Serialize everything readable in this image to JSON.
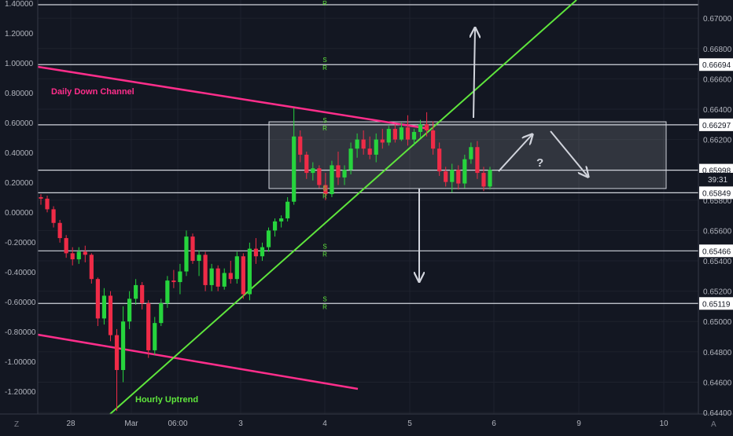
{
  "chart_data": {
    "type": "candlestick",
    "title": "",
    "left_axis": {
      "ticks": [
        "1.40000",
        "1.20000",
        "1.00000",
        "0.80000",
        "0.60000",
        "0.40000",
        "0.20000",
        "0.00000",
        "-0.20000",
        "-0.40000",
        "-0.60000",
        "-0.80000",
        "-1.00000",
        "-1.20000"
      ],
      "range": [
        -1.3,
        1.4
      ]
    },
    "right_axis": {
      "ticks": [
        "0.67000",
        "0.66800",
        "0.66600",
        "0.66400",
        "0.66200",
        "0.66000",
        "0.65800",
        "0.65600",
        "0.65400",
        "0.65200",
        "0.65000",
        "0.64800",
        "0.64600",
        "0.64400"
      ],
      "range": [
        0.6439,
        0.6712
      ]
    },
    "x_axis": {
      "labels": [
        "28",
        "Mar",
        "06:00",
        "3",
        "4",
        "5",
        "6",
        "9",
        "10"
      ]
    },
    "price_lines": [
      {
        "value": 0.66694,
        "label": "0.66694"
      },
      {
        "value": 0.66297,
        "label": "0.66297"
      },
      {
        "value": 0.65998,
        "label": "0.65998"
      },
      {
        "value": 0.65849,
        "label": "0.65849"
      },
      {
        "value": 0.65466,
        "label": "0.65466"
      },
      {
        "value": 0.65119,
        "label": "0.65119"
      }
    ],
    "sr_tags": [
      {
        "value": 0.6712,
        "text": "S R"
      },
      {
        "value": 0.66694,
        "text": "S R"
      },
      {
        "value": 0.66297,
        "text": "S R"
      },
      {
        "value": 0.65849,
        "text": "S R"
      },
      {
        "value": 0.65466,
        "text": "S R"
      },
      {
        "value": 0.65119,
        "text": "S R"
      }
    ],
    "countdown": "39:31",
    "annotations": {
      "daily_channel": "Daily Down Channel",
      "hourly_uptrend": "Hourly Uptrend",
      "question": "?"
    },
    "candles": [
      [
        0.6582,
        0.6584,
        0.6577,
        0.6581
      ],
      [
        0.6581,
        0.6583,
        0.6572,
        0.6574
      ],
      [
        0.6574,
        0.6576,
        0.6562,
        0.6565
      ],
      [
        0.6565,
        0.6567,
        0.6552,
        0.6555
      ],
      [
        0.6555,
        0.6557,
        0.6542,
        0.6545
      ],
      [
        0.6545,
        0.6549,
        0.6537,
        0.6541
      ],
      [
        0.6541,
        0.6549,
        0.6538,
        0.6546
      ],
      [
        0.6546,
        0.655,
        0.6539,
        0.6544
      ],
      [
        0.6544,
        0.6545,
        0.6525,
        0.6528
      ],
      [
        0.6528,
        0.6529,
        0.6497,
        0.6502
      ],
      [
        0.6502,
        0.6522,
        0.6498,
        0.6517
      ],
      [
        0.6517,
        0.652,
        0.6487,
        0.6491
      ],
      [
        0.6491,
        0.6495,
        0.6441,
        0.6468
      ],
      [
        0.6468,
        0.651,
        0.646,
        0.65
      ],
      [
        0.65,
        0.652,
        0.6495,
        0.6515
      ],
      [
        0.6515,
        0.6528,
        0.6511,
        0.6524
      ],
      [
        0.6524,
        0.6526,
        0.6508,
        0.6512
      ],
      [
        0.6512,
        0.6514,
        0.6476,
        0.6481
      ],
      [
        0.6481,
        0.6503,
        0.6478,
        0.6499
      ],
      [
        0.6499,
        0.6515,
        0.6497,
        0.6512
      ],
      [
        0.6512,
        0.653,
        0.6509,
        0.6527
      ],
      [
        0.6527,
        0.6534,
        0.6522,
        0.6526
      ],
      [
        0.6526,
        0.6538,
        0.6518,
        0.6533
      ],
      [
        0.6533,
        0.656,
        0.653,
        0.6556
      ],
      [
        0.6556,
        0.6558,
        0.6538,
        0.654
      ],
      [
        0.654,
        0.6547,
        0.653,
        0.6544
      ],
      [
        0.6544,
        0.6546,
        0.652,
        0.6524
      ],
      [
        0.6524,
        0.6538,
        0.652,
        0.6535
      ],
      [
        0.6535,
        0.6537,
        0.652,
        0.6523
      ],
      [
        0.6523,
        0.6535,
        0.6521,
        0.6532
      ],
      [
        0.6532,
        0.654,
        0.6525,
        0.6528
      ],
      [
        0.6528,
        0.6546,
        0.6525,
        0.6543
      ],
      [
        0.6543,
        0.6545,
        0.6515,
        0.6518
      ],
      [
        0.6518,
        0.6552,
        0.6514,
        0.6548
      ],
      [
        0.6548,
        0.6555,
        0.6538,
        0.6543
      ],
      [
        0.6543,
        0.6552,
        0.654,
        0.6549
      ],
      [
        0.6549,
        0.6562,
        0.6546,
        0.656
      ],
      [
        0.656,
        0.6568,
        0.6556,
        0.6566
      ],
      [
        0.6566,
        0.657,
        0.6562,
        0.6568
      ],
      [
        0.6568,
        0.6582,
        0.6566,
        0.6579
      ],
      [
        0.6579,
        0.6641,
        0.6577,
        0.6622
      ],
      [
        0.6622,
        0.6626,
        0.6605,
        0.661
      ],
      [
        0.661,
        0.6612,
        0.6594,
        0.6598
      ],
      [
        0.6598,
        0.6605,
        0.6593,
        0.6601
      ],
      [
        0.6601,
        0.6603,
        0.6588,
        0.659
      ],
      [
        0.659,
        0.6598,
        0.658,
        0.6584
      ],
      [
        0.6584,
        0.6606,
        0.6582,
        0.6603
      ],
      [
        0.6603,
        0.6612,
        0.659,
        0.6595
      ],
      [
        0.6595,
        0.6603,
        0.659,
        0.66
      ],
      [
        0.66,
        0.6618,
        0.6597,
        0.6614
      ],
      [
        0.6614,
        0.6624,
        0.6608,
        0.662
      ],
      [
        0.662,
        0.6626,
        0.661,
        0.6614
      ],
      [
        0.6614,
        0.6622,
        0.6607,
        0.661
      ],
      [
        0.661,
        0.6624,
        0.6605,
        0.662
      ],
      [
        0.662,
        0.6627,
        0.6614,
        0.6618
      ],
      [
        0.6618,
        0.6629,
        0.6616,
        0.6627
      ],
      [
        0.6627,
        0.663,
        0.6618,
        0.662
      ],
      [
        0.662,
        0.6631,
        0.6619,
        0.6628
      ],
      [
        0.6628,
        0.6636,
        0.6616,
        0.662
      ],
      [
        0.662,
        0.6627,
        0.6616,
        0.6625
      ],
      [
        0.6625,
        0.6633,
        0.6621,
        0.663
      ],
      [
        0.663,
        0.6638,
        0.6622,
        0.6626
      ],
      [
        0.6626,
        0.6632,
        0.661,
        0.6614
      ],
      [
        0.6614,
        0.6618,
        0.6596,
        0.6599
      ],
      [
        0.6599,
        0.6602,
        0.6589,
        0.6592
      ],
      [
        0.6592,
        0.6604,
        0.6585,
        0.66
      ],
      [
        0.66,
        0.6603,
        0.6587,
        0.6591
      ],
      [
        0.6591,
        0.661,
        0.6588,
        0.6607
      ],
      [
        0.6607,
        0.6618,
        0.6604,
        0.6615
      ],
      [
        0.6615,
        0.6619,
        0.6594,
        0.6598
      ],
      [
        0.6598,
        0.6602,
        0.6586,
        0.6589
      ],
      [
        0.6589,
        0.6602,
        0.6587,
        0.66
      ]
    ]
  }
}
